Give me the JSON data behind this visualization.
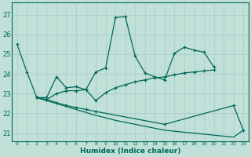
{
  "bg_color": "#c0e0d8",
  "line_color": "#006858",
  "grid_color": "#a8ccc8",
  "xlabel": "Humidex (Indice chaleur)",
  "yticks": [
    21,
    22,
    23,
    24,
    25,
    26,
    27
  ],
  "xlim": [
    -0.5,
    23.5
  ],
  "ylim": [
    20.6,
    27.6
  ],
  "line1_x": [
    0,
    1,
    2,
    3,
    4,
    5,
    6,
    7,
    8,
    9,
    10,
    11,
    12,
    13,
    14,
    15,
    16,
    17,
    18,
    19,
    20
  ],
  "line1_y": [
    25.5,
    24.1,
    22.8,
    22.8,
    23.85,
    23.3,
    23.35,
    23.2,
    24.1,
    24.3,
    26.85,
    26.9,
    24.9,
    24.05,
    23.85,
    23.7,
    25.05,
    25.35,
    25.2,
    25.1,
    24.35
  ],
  "line2_x": [
    2,
    3,
    4,
    5,
    6,
    7,
    8,
    9,
    10,
    11,
    12,
    13,
    14,
    15,
    16,
    17,
    18,
    19,
    20
  ],
  "line2_y": [
    22.8,
    22.7,
    23.0,
    23.15,
    23.15,
    23.2,
    22.65,
    23.05,
    23.3,
    23.45,
    23.6,
    23.7,
    23.8,
    23.85,
    23.95,
    24.05,
    24.1,
    24.15,
    24.2
  ],
  "line3_x": [
    2,
    3,
    4,
    5,
    6,
    7,
    8,
    15,
    22,
    23
  ],
  "line3_y": [
    22.8,
    22.7,
    22.55,
    22.4,
    22.3,
    22.2,
    22.1,
    21.45,
    22.4,
    21.15
  ],
  "line4_x": [
    2,
    3,
    4,
    5,
    6,
    7,
    8,
    9,
    10,
    11,
    12,
    13,
    14,
    15,
    16,
    17,
    18,
    19,
    20,
    21,
    22,
    23
  ],
  "line4_y": [
    22.8,
    22.65,
    22.5,
    22.35,
    22.2,
    22.05,
    21.9,
    21.78,
    21.65,
    21.55,
    21.45,
    21.35,
    21.25,
    21.15,
    21.1,
    21.05,
    21.0,
    20.95,
    20.9,
    20.85,
    20.8,
    21.15
  ]
}
